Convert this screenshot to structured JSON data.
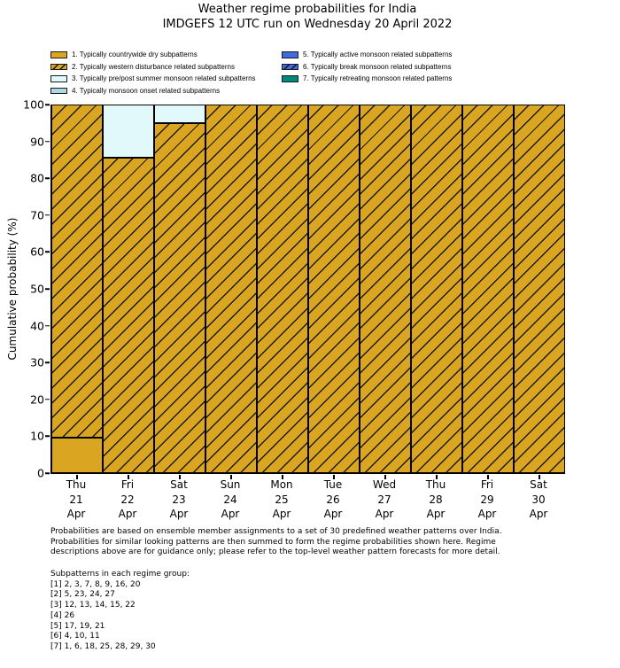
{
  "title": {
    "line1": "Weather regime probabilities for India",
    "line2": "IMDGEFS 12 UTC run on Wednesday 20 April 2022"
  },
  "legend": {
    "items": [
      {
        "label": "1. Typically countrywide dry subpatterns",
        "color": "#DAA520",
        "hatch": false
      },
      {
        "label": "2. Typically western disturbance related subpatterns",
        "color": "#DAA520",
        "hatch": true
      },
      {
        "label": "3. Typically pre/post summer monsoon related subpatterns",
        "color": "#E1F9FB",
        "hatch": false
      },
      {
        "label": "4. Typically monsoon onset related subpatterns",
        "color": "#ADD8E6",
        "hatch": false
      },
      {
        "label": "5. Typically active monsoon related subpatterns",
        "color": "#4169E1",
        "hatch": false
      },
      {
        "label": "6. Typically break monsoon related subpatterns",
        "color": "#4169E1",
        "hatch": true
      },
      {
        "label": "7. Typically retreating monsoon related patterns",
        "color": "#00897D",
        "hatch": false
      }
    ]
  },
  "chart_data": {
    "type": "bar",
    "stacked": true,
    "title": "Weather regime probabilities for India — IMDGEFS 12 UTC run on Wednesday 20 April 2022",
    "xlabel": "",
    "ylabel": "Cumulative probability (%)",
    "ylim": [
      0,
      100
    ],
    "yticks": [
      0,
      10,
      20,
      30,
      40,
      50,
      60,
      70,
      80,
      90,
      100
    ],
    "grid": false,
    "legend_position": "top",
    "categories": [
      [
        "Thu",
        "21",
        "Apr"
      ],
      [
        "Fri",
        "22",
        "Apr"
      ],
      [
        "Sat",
        "23",
        "Apr"
      ],
      [
        "Sun",
        "24",
        "Apr"
      ],
      [
        "Mon",
        "25",
        "Apr"
      ],
      [
        "Tue",
        "26",
        "Apr"
      ],
      [
        "Wed",
        "27",
        "Apr"
      ],
      [
        "Thu",
        "28",
        "Apr"
      ],
      [
        "Fri",
        "29",
        "Apr"
      ],
      [
        "Sat",
        "30",
        "Apr"
      ]
    ],
    "series": [
      {
        "name": "1. Typically countrywide dry subpatterns",
        "color": "#DAA520",
        "hatch": false,
        "values": [
          9.5,
          0,
          0,
          0,
          0,
          0,
          0,
          0,
          0,
          0
        ]
      },
      {
        "name": "2. Typically western disturbance related subpatterns",
        "color": "#DAA520",
        "hatch": true,
        "values": [
          90.5,
          85.5,
          95,
          100,
          100,
          100,
          100,
          100,
          100,
          100
        ]
      },
      {
        "name": "3. Typically pre/post summer monsoon related subpatterns",
        "color": "#E1F9FB",
        "hatch": false,
        "values": [
          0,
          14.5,
          5,
          0,
          0,
          0,
          0,
          0,
          0,
          0
        ]
      },
      {
        "name": "4. Typically monsoon onset related subpatterns",
        "color": "#ADD8E6",
        "hatch": false,
        "values": [
          0,
          0,
          0,
          0,
          0,
          0,
          0,
          0,
          0,
          0
        ]
      },
      {
        "name": "5. Typically active monsoon related subpatterns",
        "color": "#4169E1",
        "hatch": false,
        "values": [
          0,
          0,
          0,
          0,
          0,
          0,
          0,
          0,
          0,
          0
        ]
      },
      {
        "name": "6. Typically break monsoon related subpatterns",
        "color": "#4169E1",
        "hatch": true,
        "values": [
          0,
          0,
          0,
          0,
          0,
          0,
          0,
          0,
          0,
          0
        ]
      },
      {
        "name": "7. Typically retreating monsoon related patterns",
        "color": "#00897D",
        "hatch": false,
        "values": [
          0,
          0,
          0,
          0,
          0,
          0,
          0,
          0,
          0,
          0
        ]
      }
    ]
  },
  "footer": {
    "lines": [
      "Probabilities are based on ensemble member assignments to a set of 30 predefined weather patterns over India.",
      "Probabilities for similar looking patterns are then summed to form the regime probabilities shown here. Regime",
      "descriptions above are for guidance only; please refer to the top-level weather pattern forecasts for more detail."
    ]
  },
  "subpatterns": {
    "heading": "Subpatterns in each regime group:",
    "lines": [
      "[1] 2, 3, 7, 8, 9, 16, 20",
      "[2] 5, 23, 24, 27",
      "[3] 12, 13, 14, 15, 22",
      "[4] 26",
      "[5] 17, 19, 21",
      "[6] 4, 10, 11",
      "[7] 1, 6, 18, 25, 28, 29, 30"
    ]
  }
}
